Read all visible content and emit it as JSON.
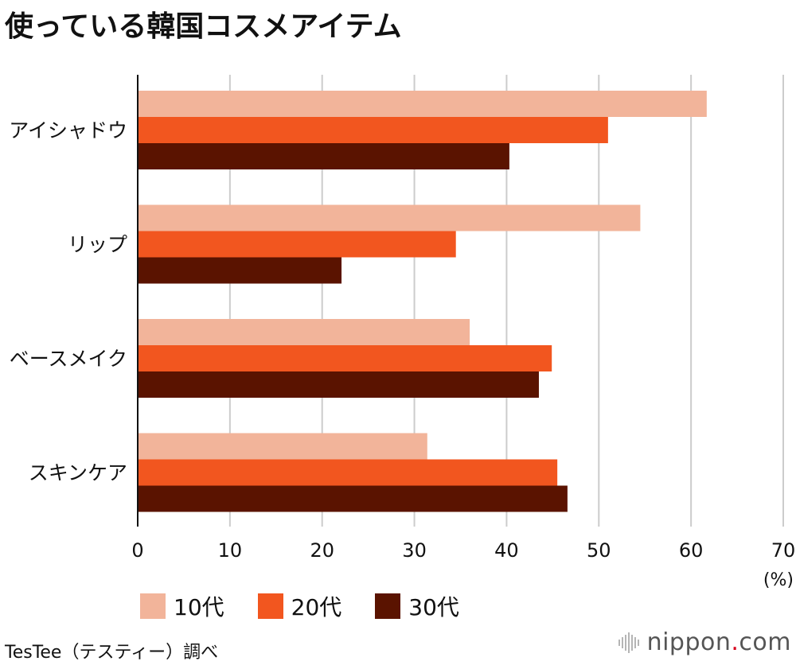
{
  "title": "使っている韓国コスメアイテム",
  "chart_data": {
    "type": "bar",
    "orientation": "horizontal",
    "categories": [
      "アイシャドウ",
      "リップ",
      "ベースメイク",
      "スキンケア"
    ],
    "series": [
      {
        "name": "10代",
        "color": "#f2b49a",
        "values": [
          61.7,
          54.5,
          36.0,
          31.4
        ]
      },
      {
        "name": "20代",
        "color": "#f2561f",
        "values": [
          51.0,
          34.5,
          44.9,
          45.5
        ]
      },
      {
        "name": "30代",
        "color": "#5a1300",
        "values": [
          40.3,
          22.1,
          43.5,
          46.6
        ]
      }
    ],
    "xlim": [
      0,
      70
    ],
    "xticks": [
      "0",
      "10",
      "20",
      "30",
      "40",
      "50",
      "60",
      "70"
    ],
    "x_unit": "(%)",
    "grid": true,
    "legend_position": "bottom"
  },
  "source": "TesTee（テスティー）調べ",
  "brand": {
    "name": "nippon",
    "dot": ".",
    "suffix": "com"
  }
}
